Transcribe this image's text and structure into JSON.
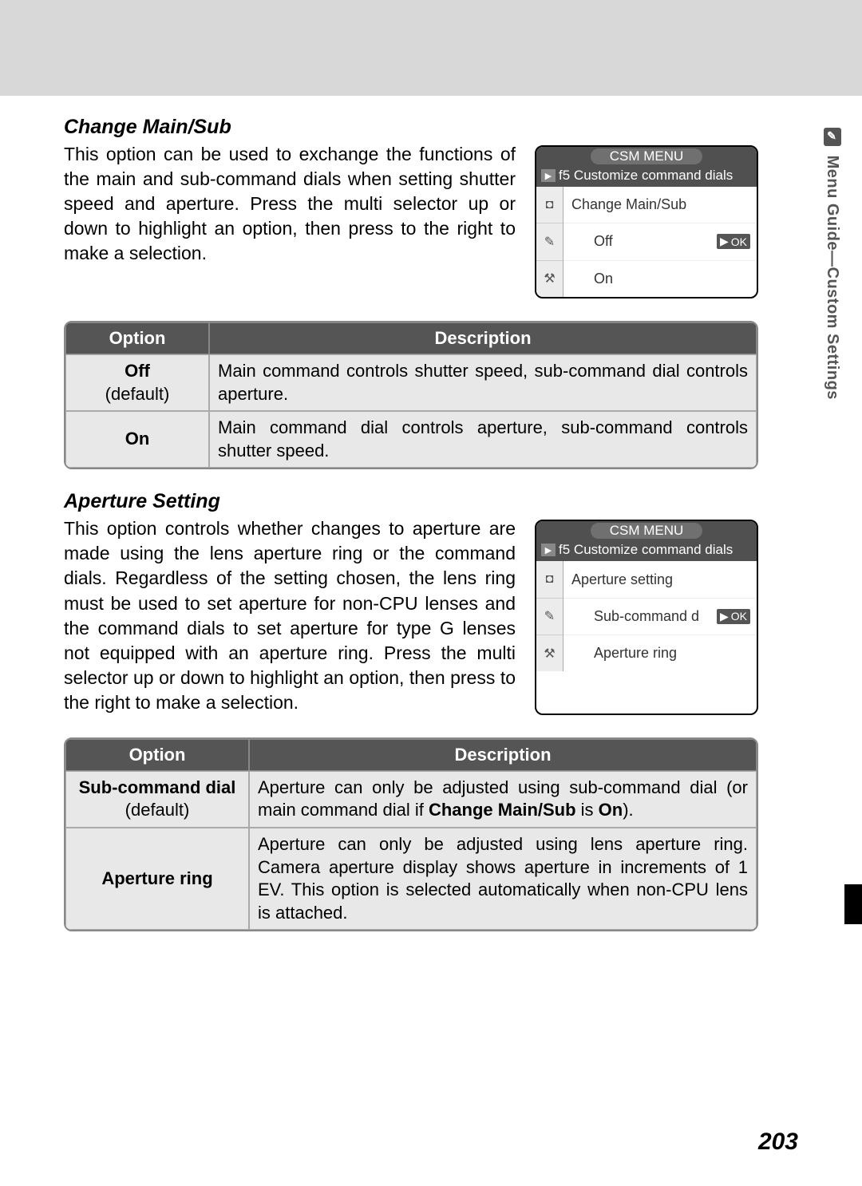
{
  "side_tab": {
    "icon_glyph": "✎",
    "text": "Menu Guide—Custom Settings"
  },
  "page_number": "203",
  "section1": {
    "title": "Change Main/Sub",
    "body": "This option can be used to exchange the functions of the main and sub-command dials when setting shutter speed and aperture.  Press the multi selector up or down to highlight an option, then press to the right to make a selection.",
    "lcd": {
      "title": "CSM MENU",
      "sub_prefix": "f5",
      "sub_label": "Customize command dials",
      "heading": "Change Main/Sub",
      "row_selected": "Off",
      "row_other": "On",
      "ok_label": "OK",
      "side_icons": [
        "▣",
        "◘",
        "✎",
        "⚒"
      ]
    },
    "table": {
      "col_option": "Option",
      "col_desc": "Description",
      "rows": [
        {
          "opt_bold": "Off",
          "opt_sub": "(default)",
          "desc": "Main command controls shutter speed, sub-command dial controls aperture."
        },
        {
          "opt_bold": "On",
          "opt_sub": "",
          "desc": "Main command dial controls aperture, sub-command controls shutter speed."
        }
      ]
    }
  },
  "section2": {
    "title": "Aperture Setting",
    "body": "This option controls whether changes to aperture are made using the lens aperture ring or the command dials.  Regardless of the setting chosen, the lens ring must be used to set aperture for non-CPU lenses and the command dials to set aperture for type G lenses not equipped with an aperture ring.  Press the multi selector up or down to highlight an option, then press to the right to make a selection.",
    "lcd": {
      "title": "CSM MENU",
      "sub_prefix": "f5",
      "sub_label": "Customize command dials",
      "heading": "Aperture setting",
      "row_selected": "Sub-command d",
      "row_other": "Aperture ring",
      "ok_label": "OK",
      "side_icons": [
        "▣",
        "◘",
        "✎",
        "⚒"
      ]
    },
    "table": {
      "col_option": "Option",
      "col_desc": "Description",
      "rows": [
        {
          "opt_bold": "Sub-command dial",
          "opt_sub": "(default)",
          "desc_pre": "Aperture can only be adjusted using sub-command dial (or main command dial if ",
          "desc_bold1": "Change Main/Sub",
          "desc_mid": " is ",
          "desc_bold2": "On",
          "desc_post": ")."
        },
        {
          "opt_bold": "Aperture ring",
          "opt_sub": "",
          "desc": "Aperture can only be adjusted using lens aperture ring.  Camera aperture display shows aperture in increments of 1 EV. This option is selected automatically when non-CPU lens is attached."
        }
      ]
    }
  }
}
